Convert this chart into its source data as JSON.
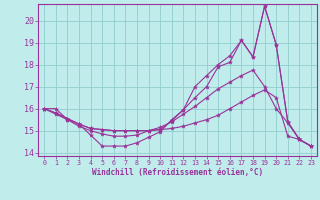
{
  "xlabel": "Windchill (Refroidissement éolien,°C)",
  "background_color": "#c0ecec",
  "grid_color": "#90cccc",
  "line_color": "#993399",
  "xlim": [
    -0.5,
    23.5
  ],
  "ylim": [
    13.85,
    20.75
  ],
  "yticks": [
    14,
    15,
    16,
    17,
    18,
    19,
    20
  ],
  "xticks": [
    0,
    1,
    2,
    3,
    4,
    5,
    6,
    7,
    8,
    9,
    10,
    11,
    12,
    13,
    14,
    15,
    16,
    17,
    18,
    19,
    20,
    21,
    22,
    23
  ],
  "series": [
    [
      16.0,
      16.0,
      15.5,
      15.3,
      14.8,
      14.3,
      14.3,
      14.3,
      14.45,
      14.7,
      14.95,
      15.5,
      15.95,
      16.5,
      17.0,
      17.9,
      18.1,
      19.1,
      18.35,
      20.65,
      18.9,
      15.4,
      14.6,
      14.3
    ],
    [
      16.0,
      15.8,
      15.55,
      15.3,
      15.1,
      15.05,
      15.0,
      15.0,
      15.0,
      15.0,
      15.05,
      15.1,
      15.2,
      15.35,
      15.5,
      15.7,
      16.0,
      16.3,
      16.6,
      16.85,
      16.5,
      14.75,
      14.6,
      14.3
    ],
    [
      16.0,
      15.8,
      15.55,
      15.3,
      15.1,
      15.05,
      15.0,
      15.0,
      15.0,
      15.0,
      15.05,
      15.45,
      15.95,
      17.0,
      17.5,
      18.0,
      18.4,
      19.1,
      18.35,
      20.65,
      18.9,
      15.4,
      14.6,
      14.3
    ],
    [
      16.0,
      15.75,
      15.5,
      15.2,
      15.0,
      14.85,
      14.75,
      14.75,
      14.8,
      15.0,
      15.15,
      15.4,
      15.75,
      16.1,
      16.5,
      16.9,
      17.2,
      17.5,
      17.75,
      17.0,
      16.0,
      15.35,
      14.6,
      14.3
    ]
  ]
}
